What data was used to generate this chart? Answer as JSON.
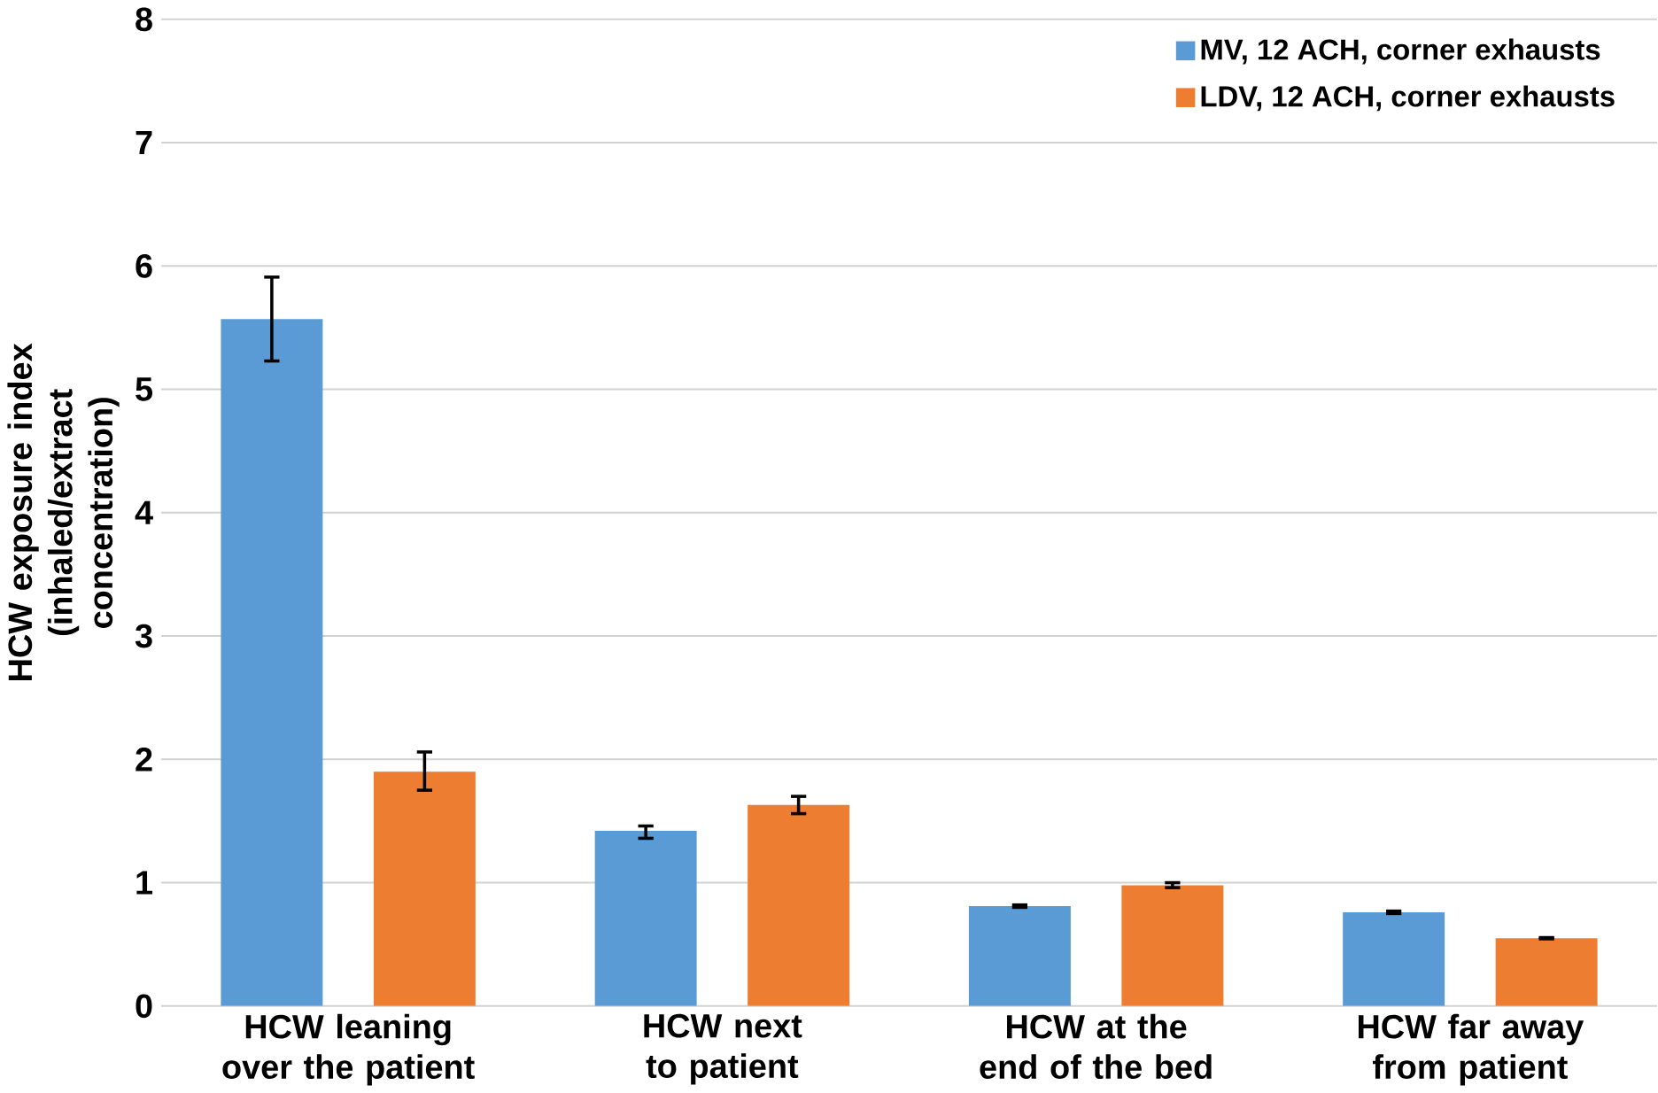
{
  "chart_data": {
    "type": "bar",
    "ylabel": "HCW exposure index (inhaled/extract concentration)",
    "categories": [
      "HCW leaning over the patient",
      "HCW next to patient",
      "HCW at the end of the bed",
      "HCW far away from patient"
    ],
    "series": [
      {
        "name": "MV, 12 ACH, corner exhausts",
        "color": "#5b9bd5",
        "values": [
          5.57,
          1.42,
          0.81,
          0.76
        ],
        "errors": [
          [
            5.23,
            5.91
          ],
          [
            1.36,
            1.46
          ],
          [
            0.8,
            0.82
          ],
          [
            0.75,
            0.77
          ]
        ]
      },
      {
        "name": "LDV, 12 ACH, corner exhausts",
        "color": "#ed7d31",
        "values": [
          1.9,
          1.63,
          0.98,
          0.55
        ],
        "errors": [
          [
            1.75,
            2.06
          ],
          [
            1.56,
            1.7
          ],
          [
            0.96,
            1.0
          ],
          [
            0.545,
            0.555
          ]
        ]
      }
    ],
    "ylim": [
      0,
      8
    ],
    "yticks": [
      0,
      1,
      2,
      3,
      4,
      5,
      6,
      7,
      8
    ],
    "grid": "y",
    "legend": "top right"
  }
}
